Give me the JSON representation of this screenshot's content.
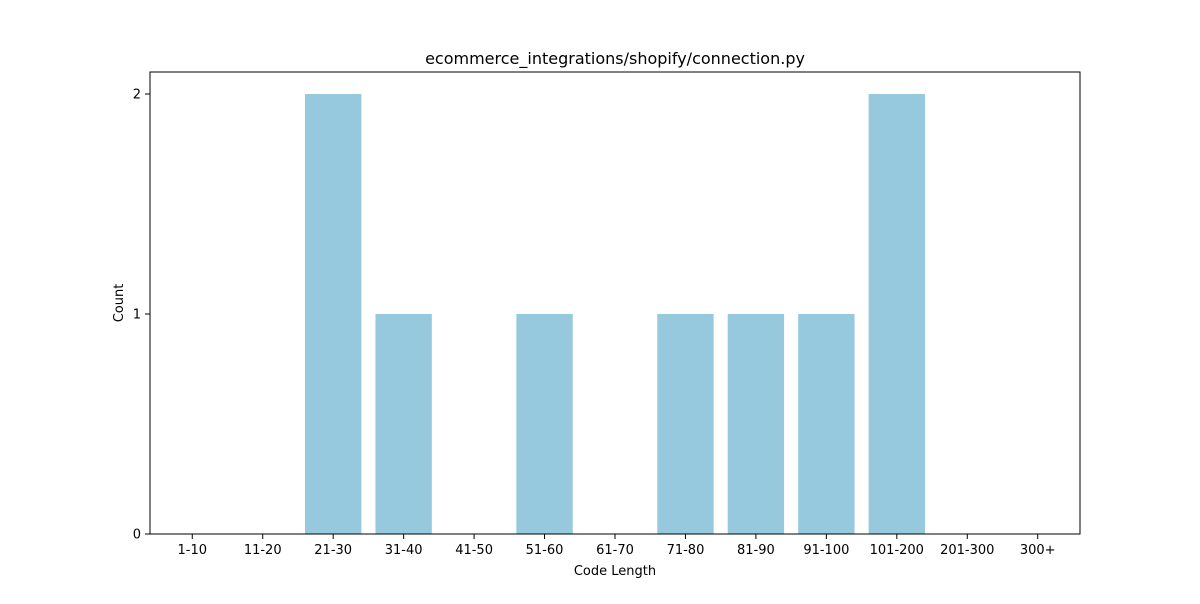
{
  "chart_data": {
    "type": "bar",
    "title": "ecommerce_integrations/shopify/connection.py",
    "xlabel": "Code Length",
    "ylabel": "Count",
    "categories": [
      "1-10",
      "11-20",
      "21-30",
      "31-40",
      "41-50",
      "51-60",
      "61-70",
      "71-80",
      "81-90",
      "91-100",
      "101-200",
      "201-300",
      "300+"
    ],
    "values": [
      0,
      0,
      2,
      1,
      0,
      1,
      0,
      1,
      1,
      1,
      2,
      0,
      0
    ],
    "ylim": [
      0,
      2.1
    ],
    "yticks": [
      "0",
      "1",
      "2"
    ],
    "grid": false,
    "bar_color": "#96c9dd"
  }
}
